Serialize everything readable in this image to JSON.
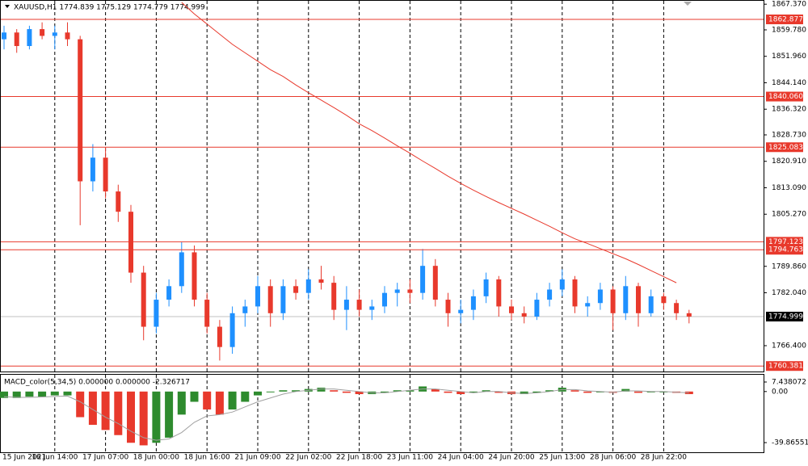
{
  "chart_data": [
    {
      "type": "candlestick",
      "title": "XAUUSD,H1  1774.839 1775.129 1774.779 1774.999",
      "categories": [
        "15 Jun 2021",
        null,
        null,
        null,
        "16 Jun 14:00",
        null,
        null,
        null,
        "17 Jun 07:00",
        null,
        null,
        null,
        "18 Jun 00:00",
        null,
        null,
        null,
        "18 Jun 16:00",
        null,
        null,
        null,
        "21 Jun 09:00",
        null,
        null,
        null,
        "22 Jun 02:00",
        null,
        null,
        null,
        "22 Jun 18:00",
        null,
        null,
        null,
        "23 Jun 11:00",
        null,
        null,
        null,
        "24 Jun 04:00",
        null,
        null,
        null,
        "24 Jun 20:00",
        null,
        null,
        null,
        "25 Jun 13:00",
        null,
        null,
        null,
        "28 Jun 06:00",
        null,
        null,
        null,
        "28 Jun 22:00",
        null,
        null
      ],
      "open": [
        1857,
        1859,
        1855,
        1860,
        1858,
        1859,
        1857,
        1815,
        1822,
        1812,
        1806,
        1788,
        1772,
        1780,
        1784,
        1794,
        1780,
        1772,
        1766,
        1776,
        1778,
        1784,
        1776,
        1784,
        1782,
        1786,
        1785,
        1777,
        1780,
        1777,
        1778,
        1782,
        1783,
        1782,
        1790,
        1780,
        1776,
        1777,
        1781,
        1786,
        1778,
        1776,
        1775,
        1780,
        1783,
        1786,
        1778,
        1779,
        1783,
        1776,
        1784,
        1776,
        1781,
        1779,
        1776
      ],
      "high": [
        1861,
        1860,
        1861,
        1862,
        1861,
        1862,
        1858,
        1826,
        1825,
        1814,
        1808,
        1790,
        1782,
        1786,
        1797,
        1796,
        1782,
        1774,
        1778,
        1780,
        1787,
        1786,
        1786,
        1786,
        1789,
        1790,
        1787,
        1784,
        1783,
        1780,
        1784,
        1785,
        1786,
        1795,
        1792,
        1782,
        1780,
        1783,
        1788,
        1787,
        1780,
        1778,
        1782,
        1785,
        1789,
        1787,
        1781,
        1785,
        1784,
        1787,
        1785,
        1783,
        1782,
        1780,
        1777
      ],
      "low": [
        1854,
        1853,
        1854,
        1857,
        1854,
        1855,
        1802,
        1812,
        1810,
        1803,
        1785,
        1768,
        1770,
        1778,
        1782,
        1778,
        1770,
        1762,
        1764,
        1772,
        1776,
        1772,
        1774,
        1780,
        1780,
        1783,
        1774,
        1771,
        1775,
        1774,
        1776,
        1778,
        1779,
        1780,
        1778,
        1772,
        1773,
        1774,
        1779,
        1775,
        1774,
        1773,
        1774,
        1778,
        1781,
        1776,
        1775,
        1777,
        1771,
        1774,
        1772,
        1775,
        1777,
        1774,
        1773
      ],
      "close": [
        1859,
        1855,
        1860,
        1858,
        1859,
        1857,
        1815,
        1822,
        1812,
        1806,
        1788,
        1772,
        1780,
        1784,
        1794,
        1780,
        1772,
        1766,
        1776,
        1778,
        1784,
        1776,
        1784,
        1782,
        1786,
        1785,
        1777,
        1780,
        1777,
        1778,
        1782,
        1783,
        1782,
        1790,
        1780,
        1776,
        1777,
        1781,
        1786,
        1778,
        1776,
        1775,
        1780,
        1783,
        1786,
        1778,
        1779,
        1783,
        1776,
        1784,
        1776,
        1781,
        1779,
        1776,
        1775
      ],
      "up_color": "#1e90ff",
      "down_color": "#e8392c",
      "series": [
        {
          "color": "#e8392c",
          "values": [
            null,
            null,
            null,
            null,
            null,
            null,
            null,
            null,
            null,
            null,
            null,
            null,
            null,
            null,
            1867.9,
            1864.5,
            1861.5,
            1858.5,
            1855.5,
            1853,
            1850.5,
            1848,
            1846,
            1843.5,
            1841.2,
            1839,
            1836.8,
            1834.5,
            1832,
            1830,
            1827.8,
            1825.5,
            1823.3,
            1821,
            1818.8,
            1816.5,
            1814.4,
            1812.4,
            1810.5,
            1808.7,
            1807,
            1805.3,
            1803.5,
            1801.7,
            1799.8,
            1798,
            1796.6,
            1795.1,
            1793.6,
            1792.1,
            1790.4,
            1788.6,
            1786.8,
            1785,
            null
          ]
        }
      ],
      "levels": [
        1862.877,
        {
          "value": 1840.06,
          "label": "1840.060"
        },
        1825.083,
        1797.123,
        1794.763,
        1760.381
      ],
      "level_color": "#e8392c",
      "last_price": 1774.999,
      "ylim": [
        1758.76,
        1868.61
      ],
      "yticks": [
        {
          "value": 1867.37,
          "label": "1867.370"
        },
        {
          "value": 1859.78,
          "label": "1859.780"
        },
        {
          "value": 1851.96,
          "label": "1851.960"
        },
        {
          "value": 1844.14,
          "label": "1844.140"
        },
        {
          "value": 1836.32,
          "label": "1836.320"
        },
        {
          "value": 1828.73,
          "label": "1828.730"
        },
        {
          "value": 1820.91,
          "label": "1820.910"
        },
        {
          "value": 1813.09,
          "label": "1813.090"
        },
        {
          "value": 1805.27,
          "label": "1805.270"
        },
        {
          "value": 1789.86,
          "label": "1789.860"
        },
        {
          "value": 1782.04,
          "label": "1782.040"
        },
        {
          "value": 1766.4,
          "label": "1766.400"
        }
      ],
      "grid": true
    },
    {
      "type": "macd",
      "title": "MACD_color(5,34,5) 0.000000 0.000000 -2.326717",
      "values": [
        -5,
        -5,
        -4,
        -4,
        -3,
        -3,
        -20,
        -26,
        -30,
        -34,
        -40,
        -42,
        -40,
        -36,
        -18,
        -8,
        -14,
        -18,
        -14,
        -8,
        -3,
        0,
        1,
        1,
        2,
        3,
        1,
        -1,
        -2,
        -2,
        -1,
        1,
        1,
        4,
        2,
        -1,
        -2,
        -1,
        1,
        -1,
        -2,
        -2,
        -1,
        1,
        3,
        1,
        -1,
        0,
        -1,
        2,
        -1,
        0,
        0,
        -1,
        -2
      ],
      "signal": [
        -4,
        -4.5,
        -4.5,
        -4.2,
        -3.8,
        -3.5,
        -8,
        -14,
        -20,
        -25,
        -31,
        -36,
        -38,
        -37,
        -32,
        -24,
        -19,
        -18,
        -16,
        -12,
        -8,
        -5,
        -2,
        0,
        1,
        2,
        2,
        1,
        0,
        -1,
        -1,
        0,
        1,
        2,
        2,
        1,
        0,
        -1,
        0,
        0,
        -1,
        -1.5,
        -1,
        0,
        1.5,
        1.5,
        0.5,
        0,
        -0.5,
        0.5,
        0.5,
        0,
        0,
        -0.5,
        -1
      ],
      "up_color": "#2e8b2e",
      "down_color": "#e8392c",
      "signal_color": "#a0a0a0",
      "ylim": [
        -47.4,
        13.75
      ],
      "yticks": [
        7.438072,
        {
          "value": 0,
          "label": "0.00"
        },
        -39.86551
      ]
    }
  ]
}
